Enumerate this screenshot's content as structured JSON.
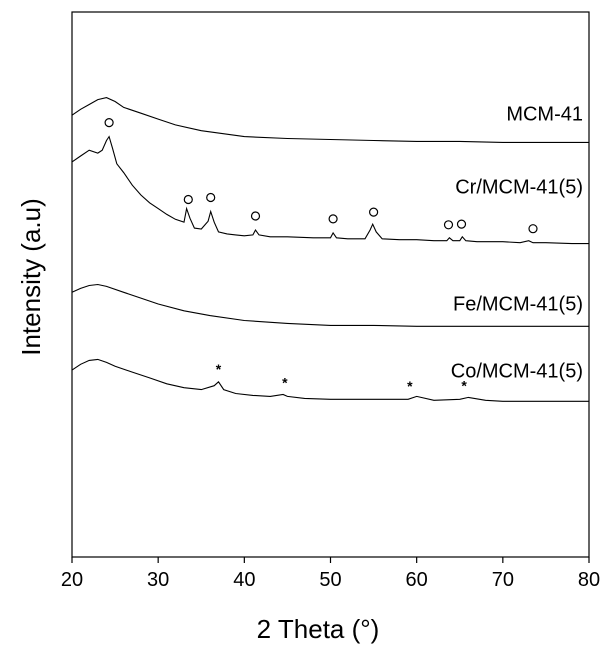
{
  "chart_data": {
    "type": "line",
    "title": "",
    "xlabel": "2 Theta (°)",
    "ylabel": "Intensity (a.u)",
    "xlim": [
      20,
      80
    ],
    "xticks": [
      20,
      30,
      40,
      50,
      60,
      70,
      80
    ],
    "xtick_labels": [
      "20",
      "30",
      "40",
      "50",
      "60",
      "70",
      "80"
    ],
    "y_ticks_shown": false,
    "grid": false,
    "legend": "none",
    "series": [
      {
        "name": "MCM-41",
        "x": [
          20,
          21,
          22,
          23,
          24,
          25,
          26,
          28,
          30,
          32,
          35,
          40,
          45,
          50,
          55,
          60,
          65,
          70,
          75,
          80
        ],
        "y": [
          2.94,
          3.0,
          3.05,
          3.1,
          3.12,
          3.08,
          3.02,
          2.96,
          2.9,
          2.84,
          2.78,
          2.72,
          2.7,
          2.69,
          2.68,
          2.67,
          2.67,
          2.66,
          2.66,
          2.66
        ]
      },
      {
        "name": "Cr/MCM-41(5)",
        "x": [
          20,
          21,
          22,
          23,
          23.5,
          24,
          24.3,
          24.7,
          25.2,
          26,
          27,
          28,
          29,
          30,
          31,
          32,
          33,
          33.3,
          33.7,
          34.2,
          35,
          35.8,
          36.1,
          36.5,
          37,
          38,
          39,
          40,
          41,
          41.3,
          41.7,
          43,
          45,
          48,
          50,
          50.3,
          50.7,
          52,
          54,
          54.6,
          54.9,
          55.3,
          56,
          58,
          60,
          62,
          63.5,
          63.8,
          64.2,
          65,
          65.3,
          65.7,
          67,
          70,
          72,
          73,
          73.5,
          75,
          78,
          80
        ],
        "y": [
          2.46,
          2.52,
          2.58,
          2.55,
          2.58,
          2.68,
          2.72,
          2.6,
          2.44,
          2.35,
          2.22,
          2.12,
          2.04,
          1.98,
          1.92,
          1.87,
          1.84,
          1.98,
          1.88,
          1.78,
          1.77,
          1.85,
          1.95,
          1.84,
          1.74,
          1.72,
          1.71,
          1.7,
          1.71,
          1.76,
          1.71,
          1.69,
          1.69,
          1.68,
          1.68,
          1.73,
          1.68,
          1.67,
          1.67,
          1.76,
          1.82,
          1.74,
          1.67,
          1.66,
          1.66,
          1.65,
          1.65,
          1.68,
          1.65,
          1.65,
          1.69,
          1.65,
          1.64,
          1.64,
          1.63,
          1.65,
          1.63,
          1.63,
          1.62,
          1.62
        ]
      },
      {
        "name": "Fe/MCM-41(5)",
        "x": [
          20,
          21,
          22,
          23,
          24,
          26,
          28,
          30,
          33,
          36,
          40,
          45,
          50,
          55,
          60,
          65,
          70,
          75,
          80
        ],
        "y": [
          1.12,
          1.16,
          1.19,
          1.2,
          1.18,
          1.12,
          1.06,
          1.0,
          0.93,
          0.88,
          0.83,
          0.8,
          0.78,
          0.78,
          0.77,
          0.77,
          0.77,
          0.77,
          0.77
        ]
      },
      {
        "name": "Co/MCM-41(5)",
        "x": [
          20,
          21,
          22,
          23,
          24,
          25,
          27,
          29,
          31,
          33,
          35,
          36.5,
          37,
          37.6,
          39,
          41,
          43,
          44.5,
          45,
          47,
          50,
          53,
          56,
          59,
          60,
          62,
          65,
          66,
          68,
          70,
          73,
          76,
          80
        ],
        "y": [
          0.32,
          0.38,
          0.42,
          0.43,
          0.4,
          0.36,
          0.3,
          0.24,
          0.18,
          0.14,
          0.12,
          0.16,
          0.2,
          0.12,
          0.08,
          0.06,
          0.05,
          0.07,
          0.05,
          0.03,
          0.02,
          0.02,
          0.02,
          0.02,
          0.05,
          0.01,
          0.02,
          0.04,
          0.01,
          0.0,
          0.0,
          0.0,
          0.0
        ]
      }
    ],
    "series_labels": [
      "MCM-41",
      "Cr/MCM-41(5)",
      "Fe/MCM-41(5)",
      "Co/MCM-41(5)"
    ],
    "peak_markers": [
      {
        "symbol": "○",
        "series": "Cr/MCM-41(5)",
        "x": [
          24.3,
          33.5,
          36.1,
          41.3,
          50.3,
          55.0,
          63.7,
          65.2,
          73.5
        ]
      },
      {
        "symbol": "*",
        "series": "Co/MCM-41(5)",
        "x": [
          37.0,
          44.7,
          59.2,
          65.5
        ]
      }
    ]
  }
}
